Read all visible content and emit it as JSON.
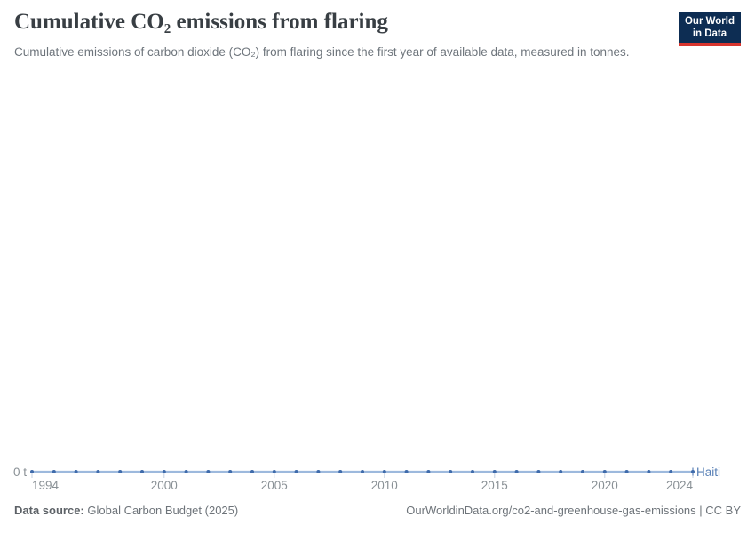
{
  "header": {
    "title": "Cumulative CO₂ emissions from flaring",
    "subtitle": "Cumulative emissions of carbon dioxide (CO₂) from flaring since the first year of available data, measured in tonnes."
  },
  "logo": {
    "line1": "Our World",
    "line2": "in Data"
  },
  "chart_data": {
    "type": "line",
    "title": "Cumulative CO₂ emissions from flaring",
    "entity": "Haiti",
    "unit": "t",
    "x": [
      1994,
      1995,
      1996,
      1997,
      1998,
      1999,
      2000,
      2001,
      2002,
      2003,
      2004,
      2005,
      2006,
      2007,
      2008,
      2009,
      2010,
      2011,
      2012,
      2013,
      2014,
      2015,
      2016,
      2017,
      2018,
      2019,
      2020,
      2021,
      2022,
      2023,
      2024
    ],
    "series": [
      {
        "name": "Haiti",
        "color": "#3f6bab",
        "values": [
          0,
          0,
          0,
          0,
          0,
          0,
          0,
          0,
          0,
          0,
          0,
          0,
          0,
          0,
          0,
          0,
          0,
          0,
          0,
          0,
          0,
          0,
          0,
          0,
          0,
          0,
          0,
          0,
          0,
          0,
          0
        ]
      }
    ],
    "x_axis": {
      "ticks": [
        1994,
        2000,
        2005,
        2010,
        2015,
        2020,
        2024
      ],
      "range": [
        1994,
        2024
      ]
    },
    "y_axis": {
      "tick_label": "0 t",
      "ticks": [
        0
      ],
      "range_shown": [
        0,
        0
      ]
    },
    "grid": false,
    "legend": "entity label at line end",
    "markers": true
  },
  "footer": {
    "source_label": "Data source:",
    "source_text": "Global Carbon Budget (2025)",
    "credit": "OurWorldinData.org/co2-and-greenhouse-gas-emissions | CC BY"
  },
  "colors": {
    "logo_navy": "#0d2d53",
    "logo_red": "#d8352e",
    "series_dot": "#3f6bab",
    "series_line": "#9db9dd",
    "series_label_text": "#5880b6",
    "axis_tick": "#c3cfe0",
    "axis_text": "#8a9196",
    "title_text": "#383e43",
    "subtitle_text": "#6e757c"
  }
}
